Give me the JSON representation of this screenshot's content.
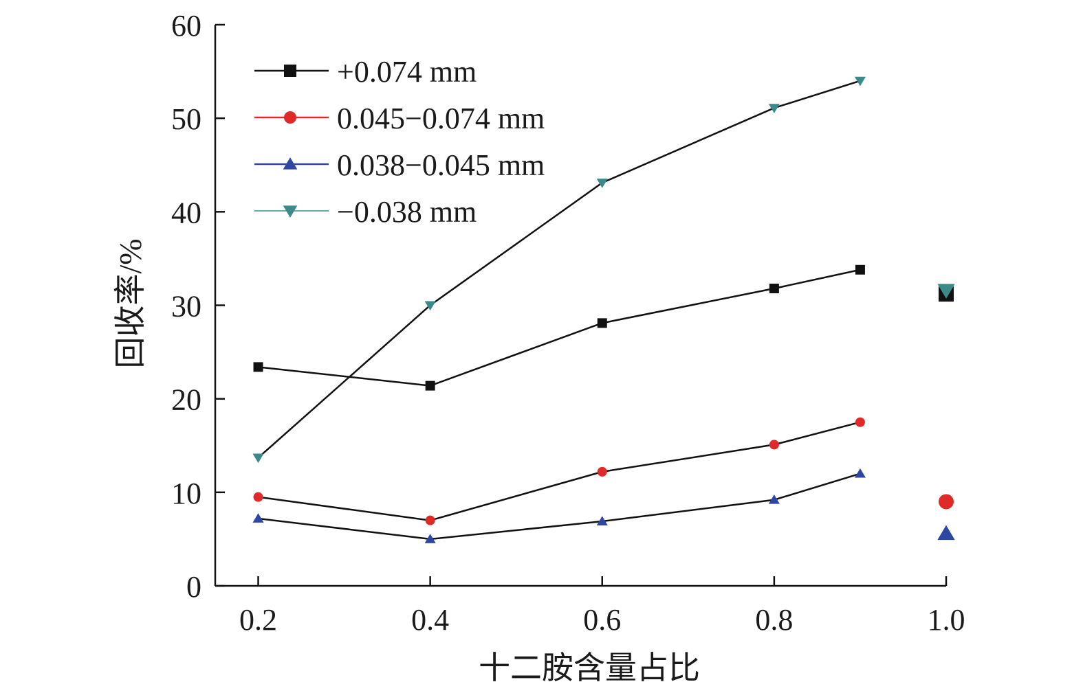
{
  "chart_data": {
    "type": "line",
    "title": "",
    "xlabel": "十二胺含量占比",
    "ylabel": "回收率/%",
    "xlim": [
      0.15,
      1.0
    ],
    "ylim": [
      0,
      60
    ],
    "x_ticks": [
      "0.2",
      "0.4",
      "0.6",
      "0.8",
      "1.0"
    ],
    "y_ticks": [
      "0",
      "10",
      "20",
      "30",
      "40",
      "50",
      "60"
    ],
    "grid": false,
    "legend_position": "top-left",
    "x": [
      0.2,
      0.4,
      0.6,
      0.8,
      0.9
    ],
    "series": [
      {
        "name": "+0.074 mm",
        "color": "#111111",
        "marker": "square",
        "values": [
          23.4,
          21.4,
          28.1,
          31.8,
          33.8
        ],
        "extra_point": {
          "x": 1.0,
          "y": 31.2
        }
      },
      {
        "name": "0.045−0.074 mm",
        "color": "#e02a2a",
        "marker": "circle",
        "values": [
          9.5,
          7.0,
          12.2,
          15.1,
          17.5
        ],
        "extra_point": {
          "x": 1.0,
          "y": 9.0
        }
      },
      {
        "name": "0.038−0.045 mm",
        "color": "#2e47a3",
        "marker": "triangle-up",
        "values": [
          7.2,
          5.0,
          6.9,
          9.2,
          12.0
        ],
        "extra_point": {
          "x": 1.0,
          "y": 5.6
        }
      },
      {
        "name": "−0.038 mm",
        "color": "#3a8a8a",
        "marker": "triangle-down",
        "values": [
          13.7,
          30.0,
          43.1,
          51.1,
          54.0
        ],
        "extra_point": {
          "x": 1.0,
          "y": 31.6
        }
      }
    ]
  }
}
